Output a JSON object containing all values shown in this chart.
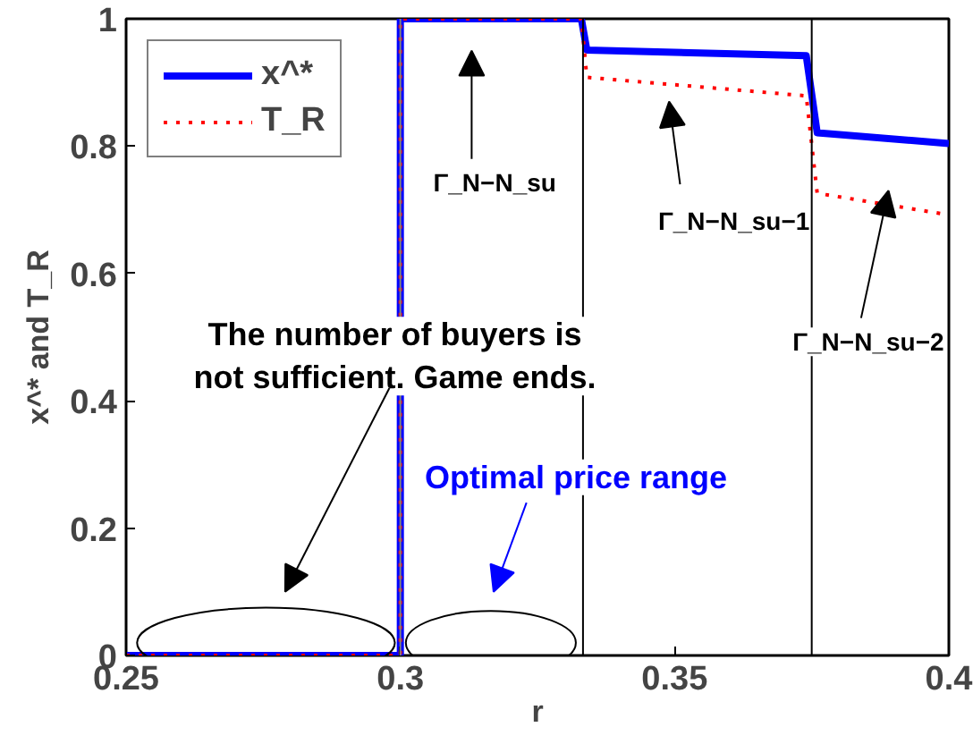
{
  "chart_data": {
    "type": "line",
    "xlabel": "r",
    "ylabel": "x^* and T_R",
    "xlim": [
      0.25,
      0.4
    ],
    "ylim": [
      0,
      1
    ],
    "xticks": [
      0.25,
      0.3,
      0.35,
      0.4
    ],
    "yticks": [
      0,
      0.2,
      0.4,
      0.6,
      0.8,
      1
    ],
    "series": [
      {
        "name": "x^*",
        "color": "#0000ff",
        "line_style": "solid",
        "x": [
          0.25,
          0.3,
          0.3,
          0.333,
          0.334,
          0.374,
          0.376,
          0.4
        ],
        "values": [
          0,
          0,
          1,
          1,
          0.951,
          0.942,
          0.821,
          0.804
        ]
      },
      {
        "name": "T_R",
        "color": "#ff0000",
        "line_style": "dotted",
        "x": [
          0.25,
          0.3,
          0.3,
          0.333,
          0.334,
          0.374,
          0.376,
          0.4
        ],
        "values": [
          0,
          0,
          1,
          1,
          0.908,
          0.879,
          0.726,
          0.692
        ]
      }
    ],
    "ref_lines": [
      {
        "axis": "x",
        "value": 0.3,
        "color": "#808080"
      },
      {
        "axis": "x",
        "value": 0.3333,
        "color": "#000000"
      },
      {
        "axis": "x",
        "value": 0.375,
        "color": "#000000"
      }
    ],
    "annotations": [
      {
        "text": "The number of buyers is\nnot sufficient. Game ends.",
        "x": 0.299,
        "y": 0.47
      },
      {
        "text": "Optimal price range",
        "x": 0.332,
        "y": 0.28
      },
      "Γ_N−N_su",
      "Γ_N−N_su−1",
      "Γ_N−N_su−2"
    ],
    "legend": "top left",
    "grid": false
  }
}
